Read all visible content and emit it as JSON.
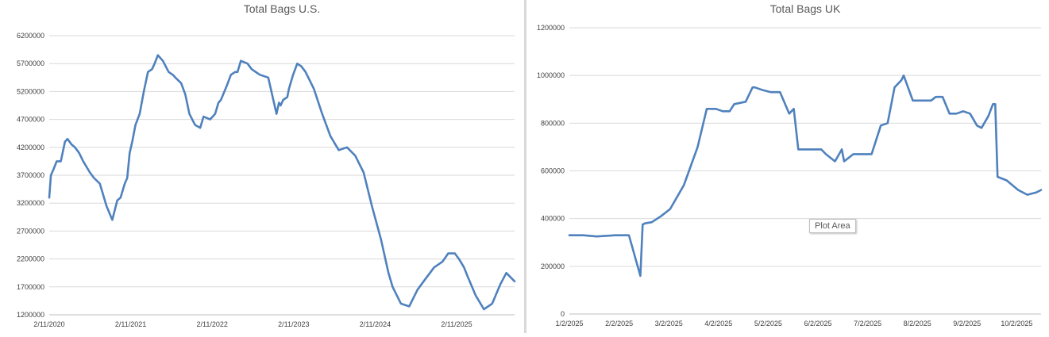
{
  "chart_data": [
    {
      "type": "line",
      "title": "Total Bags U.S.",
      "xlabel": "",
      "ylabel": "",
      "ylim": [
        1200000,
        6200000
      ],
      "yticks": [
        "1200000",
        "1700000",
        "2200000",
        "2700000",
        "3200000",
        "3700000",
        "4200000",
        "4700000",
        "5200000",
        "5700000",
        "6200000"
      ],
      "xticks": [
        "2/11/2020",
        "2/11/2021",
        "2/11/2022",
        "2/11/2023",
        "2/11/2024",
        "2/11/2025"
      ],
      "x_range": [
        2020.11,
        2025.72
      ],
      "grid": true,
      "color": "#4f81bd",
      "series": [
        {
          "x": [
            2020.11,
            2020.13,
            2020.16,
            2020.2,
            2020.25,
            2020.3,
            2020.33,
            2020.38,
            2020.42,
            2020.47,
            2020.52,
            2020.6,
            2020.65,
            2020.72,
            2020.8,
            2020.87,
            2020.93,
            2020.97,
            2021.02,
            2021.05,
            2021.08,
            2021.11,
            2021.15,
            2021.2,
            2021.25,
            2021.3,
            2021.35,
            2021.38,
            2021.42,
            2021.45,
            2021.48,
            2021.55,
            2021.6,
            2021.63,
            2021.7,
            2021.75,
            2021.8,
            2021.85,
            2021.87,
            2021.93,
            2021.97,
            2022.05,
            2022.11,
            2022.15,
            2022.18,
            2022.25,
            2022.3,
            2022.35,
            2022.38,
            2022.42,
            2022.5,
            2022.55,
            2022.6,
            2022.65,
            2022.75,
            2022.85,
            2022.88,
            2022.9,
            2022.93,
            2022.98,
            2023.0,
            2023.05,
            2023.1,
            2023.15,
            2023.2,
            2023.25,
            2023.3,
            2023.4,
            2023.5,
            2023.6,
            2023.7,
            2023.8,
            2023.9,
            2024.0,
            2024.11,
            2024.2,
            2024.25,
            2024.35,
            2024.45,
            2024.55,
            2024.65,
            2024.75,
            2024.85,
            2024.92,
            2025.0,
            2025.05,
            2025.11,
            2025.15,
            2025.25,
            2025.35,
            2025.45,
            2025.55,
            2025.62,
            2025.72
          ],
          "y": [
            3300000,
            3700000,
            3800000,
            3950000,
            3950000,
            4300000,
            4350000,
            4250000,
            4200000,
            4100000,
            3950000,
            3750000,
            3650000,
            3550000,
            3150000,
            2900000,
            3250000,
            3300000,
            3550000,
            3650000,
            4100000,
            4300000,
            4600000,
            4800000,
            5200000,
            5550000,
            5600000,
            5700000,
            5850000,
            5800000,
            5750000,
            5550000,
            5500000,
            5450000,
            5350000,
            5150000,
            4800000,
            4650000,
            4600000,
            4550000,
            4750000,
            4700000,
            4800000,
            5000000,
            5050000,
            5300000,
            5500000,
            5550000,
            5550000,
            5750000,
            5700000,
            5600000,
            5550000,
            5500000,
            5450000,
            4800000,
            5000000,
            4950000,
            5050000,
            5100000,
            5250000,
            5500000,
            5700000,
            5650000,
            5550000,
            5400000,
            5250000,
            4800000,
            4400000,
            4150000,
            4200000,
            4050000,
            3750000,
            3150000,
            2550000,
            1950000,
            1700000,
            1400000,
            1350000,
            1650000,
            1850000,
            2050000,
            2150000,
            2300000,
            2300000,
            2200000,
            2050000,
            1900000,
            1550000,
            1300000,
            1400000,
            1750000,
            1950000,
            1800000
          ]
        }
      ]
    },
    {
      "type": "line",
      "title": "Total Bags UK",
      "xlabel": "",
      "ylabel": "",
      "ylim": [
        0,
        1200000
      ],
      "yticks": [
        "0",
        "200000",
        "400000",
        "600000",
        "800000",
        "1000000",
        "1200000"
      ],
      "xticks": [
        "1/2/2025",
        "2/2/2025",
        "3/2/2025",
        "4/2/2025",
        "5/2/2025",
        "6/2/2025",
        "7/2/2025",
        "8/2/2025",
        "9/2/2025",
        "10/2/2025"
      ],
      "x_range": [
        0,
        10.3
      ],
      "grid": true,
      "color": "#4f81bd",
      "series": [
        {
          "x": [
            0,
            0.3,
            0.6,
            1.0,
            1.3,
            1.55,
            1.6,
            1.65,
            1.8,
            2.0,
            2.2,
            2.5,
            2.8,
            3.0,
            3.2,
            3.35,
            3.5,
            3.6,
            3.85,
            4.0,
            4.05,
            4.2,
            4.4,
            4.6,
            4.8,
            4.9,
            5.0,
            5.2,
            5.5,
            5.6,
            5.8,
            5.95,
            6.0,
            6.2,
            6.25,
            6.3,
            6.6,
            6.8,
            6.95,
            7.1,
            7.25,
            7.3,
            7.5,
            7.55,
            7.7,
            7.9,
            8.0,
            8.15,
            8.3,
            8.45,
            8.6,
            8.75,
            8.9,
            9.0,
            9.15,
            9.25,
            9.3,
            9.35,
            9.55,
            9.8,
            10.0,
            10.2,
            10.3
          ],
          "y": [
            330000,
            330000,
            325000,
            330000,
            330000,
            160000,
            375000,
            380000,
            385000,
            410000,
            440000,
            540000,
            700000,
            860000,
            860000,
            850000,
            850000,
            880000,
            890000,
            950000,
            950000,
            940000,
            930000,
            930000,
            840000,
            860000,
            690000,
            690000,
            690000,
            670000,
            640000,
            690000,
            640000,
            670000,
            670000,
            670000,
            670000,
            790000,
            800000,
            950000,
            980000,
            1000000,
            895000,
            895000,
            895000,
            895000,
            910000,
            910000,
            840000,
            840000,
            850000,
            840000,
            790000,
            780000,
            830000,
            880000,
            880000,
            575000,
            560000,
            520000,
            500000,
            510000,
            520000
          ]
        }
      ]
    }
  ],
  "overlay": {
    "tooltip_text": "Plot Area"
  }
}
